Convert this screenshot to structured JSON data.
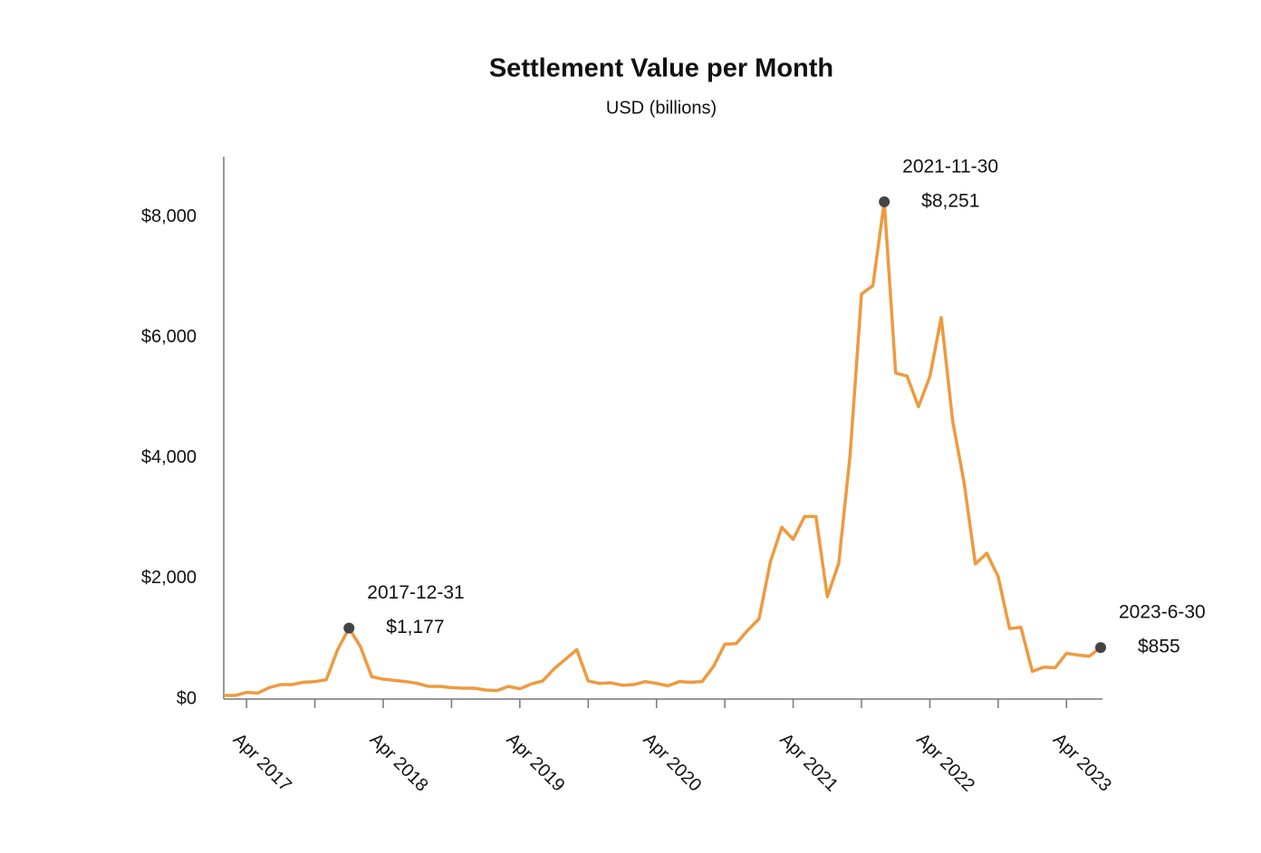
{
  "chart_data": {
    "type": "line",
    "title": "Settlement Value per Month",
    "subtitle": "USD (billions)",
    "color": "#ee9a3f",
    "x": [
      "2017-01",
      "2017-02",
      "2017-03",
      "2017-04",
      "2017-05",
      "2017-06",
      "2017-07",
      "2017-08",
      "2017-09",
      "2017-10",
      "2017-11",
      "2017-12",
      "2018-01",
      "2018-02",
      "2018-03",
      "2018-04",
      "2018-05",
      "2018-06",
      "2018-07",
      "2018-08",
      "2018-09",
      "2018-10",
      "2018-11",
      "2018-12",
      "2019-01",
      "2019-02",
      "2019-03",
      "2019-04",
      "2019-05",
      "2019-06",
      "2019-07",
      "2019-08",
      "2019-09",
      "2019-10",
      "2019-11",
      "2019-12",
      "2020-01",
      "2020-02",
      "2020-03",
      "2020-04",
      "2020-05",
      "2020-06",
      "2020-07",
      "2020-08",
      "2020-09",
      "2020-10",
      "2020-11",
      "2020-12",
      "2021-01",
      "2021-02",
      "2021-03",
      "2021-04",
      "2021-05",
      "2021-06",
      "2021-07",
      "2021-08",
      "2021-09",
      "2021-10",
      "2021-11",
      "2021-12",
      "2022-01",
      "2022-02",
      "2022-03",
      "2022-04",
      "2022-05",
      "2022-06",
      "2022-07",
      "2022-08",
      "2022-09",
      "2022-10",
      "2022-11",
      "2022-12",
      "2023-01",
      "2023-02",
      "2023-03",
      "2023-04",
      "2023-05",
      "2023-06"
    ],
    "values": [
      60,
      60,
      110,
      100,
      190,
      240,
      240,
      280,
      290,
      320,
      820,
      1177,
      870,
      370,
      330,
      310,
      290,
      260,
      210,
      210,
      190,
      180,
      180,
      150,
      140,
      210,
      170,
      250,
      300,
      500,
      660,
      820,
      300,
      260,
      270,
      230,
      240,
      290,
      260,
      220,
      290,
      280,
      290,
      540,
      910,
      920,
      1140,
      1330,
      2280,
      2850,
      2650,
      3030,
      3030,
      1700,
      2250,
      4050,
      6720,
      6860,
      8251,
      5410,
      5360,
      4850,
      5350,
      6330,
      4620,
      3600,
      2240,
      2420,
      2030,
      1170,
      1190,
      460,
      530,
      520,
      760,
      730,
      710,
      855
    ],
    "xlim": [
      "2017-01",
      "2023-06"
    ],
    "xticks": [
      {
        "value": "2017-04",
        "label": "Apr 2017"
      },
      {
        "value": "2018-04",
        "label": "Apr 2018"
      },
      {
        "value": "2019-04",
        "label": "Apr 2019"
      },
      {
        "value": "2020-04",
        "label": "Apr 2020"
      },
      {
        "value": "2021-04",
        "label": "Apr 2021"
      },
      {
        "value": "2022-04",
        "label": "Apr 2022"
      },
      {
        "value": "2023-04",
        "label": "Apr 2023"
      }
    ],
    "xminor_ticks": [
      "2017-10",
      "2018-10",
      "2019-10",
      "2020-10",
      "2021-10",
      "2022-10"
    ],
    "ylim": [
      0,
      9000
    ],
    "yticks": [
      {
        "value": 0,
        "label": "$0"
      },
      {
        "value": 2000,
        "label": "$2,000"
      },
      {
        "value": 4000,
        "label": "$4,000"
      },
      {
        "value": 6000,
        "label": "$6,000"
      },
      {
        "value": 8000,
        "label": "$8,000"
      }
    ],
    "grid": false,
    "annotations": [
      {
        "x": "2017-12",
        "date_label": "2017-12-31",
        "value": 1177,
        "label": "$1,177"
      },
      {
        "x": "2021-11",
        "date_label": "2021-11-30",
        "value": 8251,
        "label": "$8,251"
      },
      {
        "x": "2023-06",
        "date_label": "2023-6-30",
        "value": 855,
        "label": "$855"
      }
    ]
  }
}
